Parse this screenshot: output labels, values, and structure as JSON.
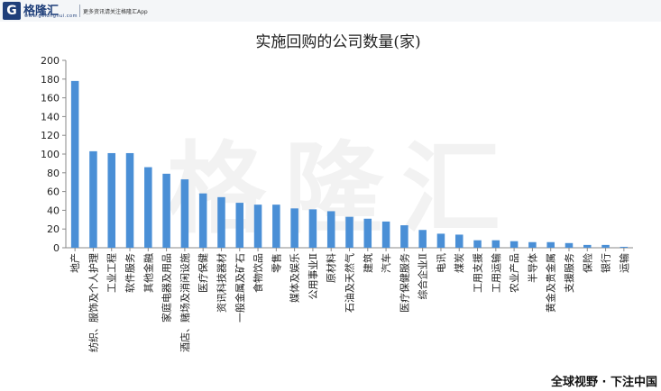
{
  "brand": {
    "logo_glyph": "G",
    "name": "格隆汇",
    "url": "www.gelonghui.com",
    "tagline": "更多资讯请关注格隆汇App",
    "footer": "全球视野 · 下注中国",
    "watermark": "格隆汇"
  },
  "chart_data": {
    "type": "bar",
    "title": "实施回购的公司数量(家)",
    "xlabel": "",
    "ylabel": "",
    "ylim": [
      0,
      200
    ],
    "yticks": [
      0,
      20,
      40,
      60,
      80,
      100,
      120,
      140,
      160,
      180,
      200
    ],
    "grid": false,
    "legend": "none",
    "color": "#4a8fd6",
    "categories": [
      "地产",
      "纺织、服饰及个人护理",
      "工业工程",
      "软件服务",
      "其他金融",
      "家庭电器及用品",
      "酒店、赌场及消闲设施",
      "医疗保健",
      "资讯科技器材",
      "一般金属及矿石",
      "食物饮品",
      "零售",
      "媒体及娱乐",
      "公用事业Ⅱ",
      "原材料",
      "石油及天然气",
      "建筑",
      "汽车",
      "医疗保健服务",
      "综合企业Ⅱ",
      "电讯",
      "煤炭",
      "工用支援",
      "工用运输",
      "农业产品",
      "半导体",
      "黄金及贵金属",
      "支援服务",
      "保险",
      "银行",
      "运输"
    ],
    "values": [
      178,
      103,
      101,
      101,
      86,
      79,
      73,
      58,
      54,
      48,
      46,
      46,
      42,
      41,
      39,
      33,
      31,
      28,
      24,
      19,
      15,
      14,
      8,
      8,
      7,
      6,
      6,
      5,
      3,
      3,
      1
    ]
  }
}
